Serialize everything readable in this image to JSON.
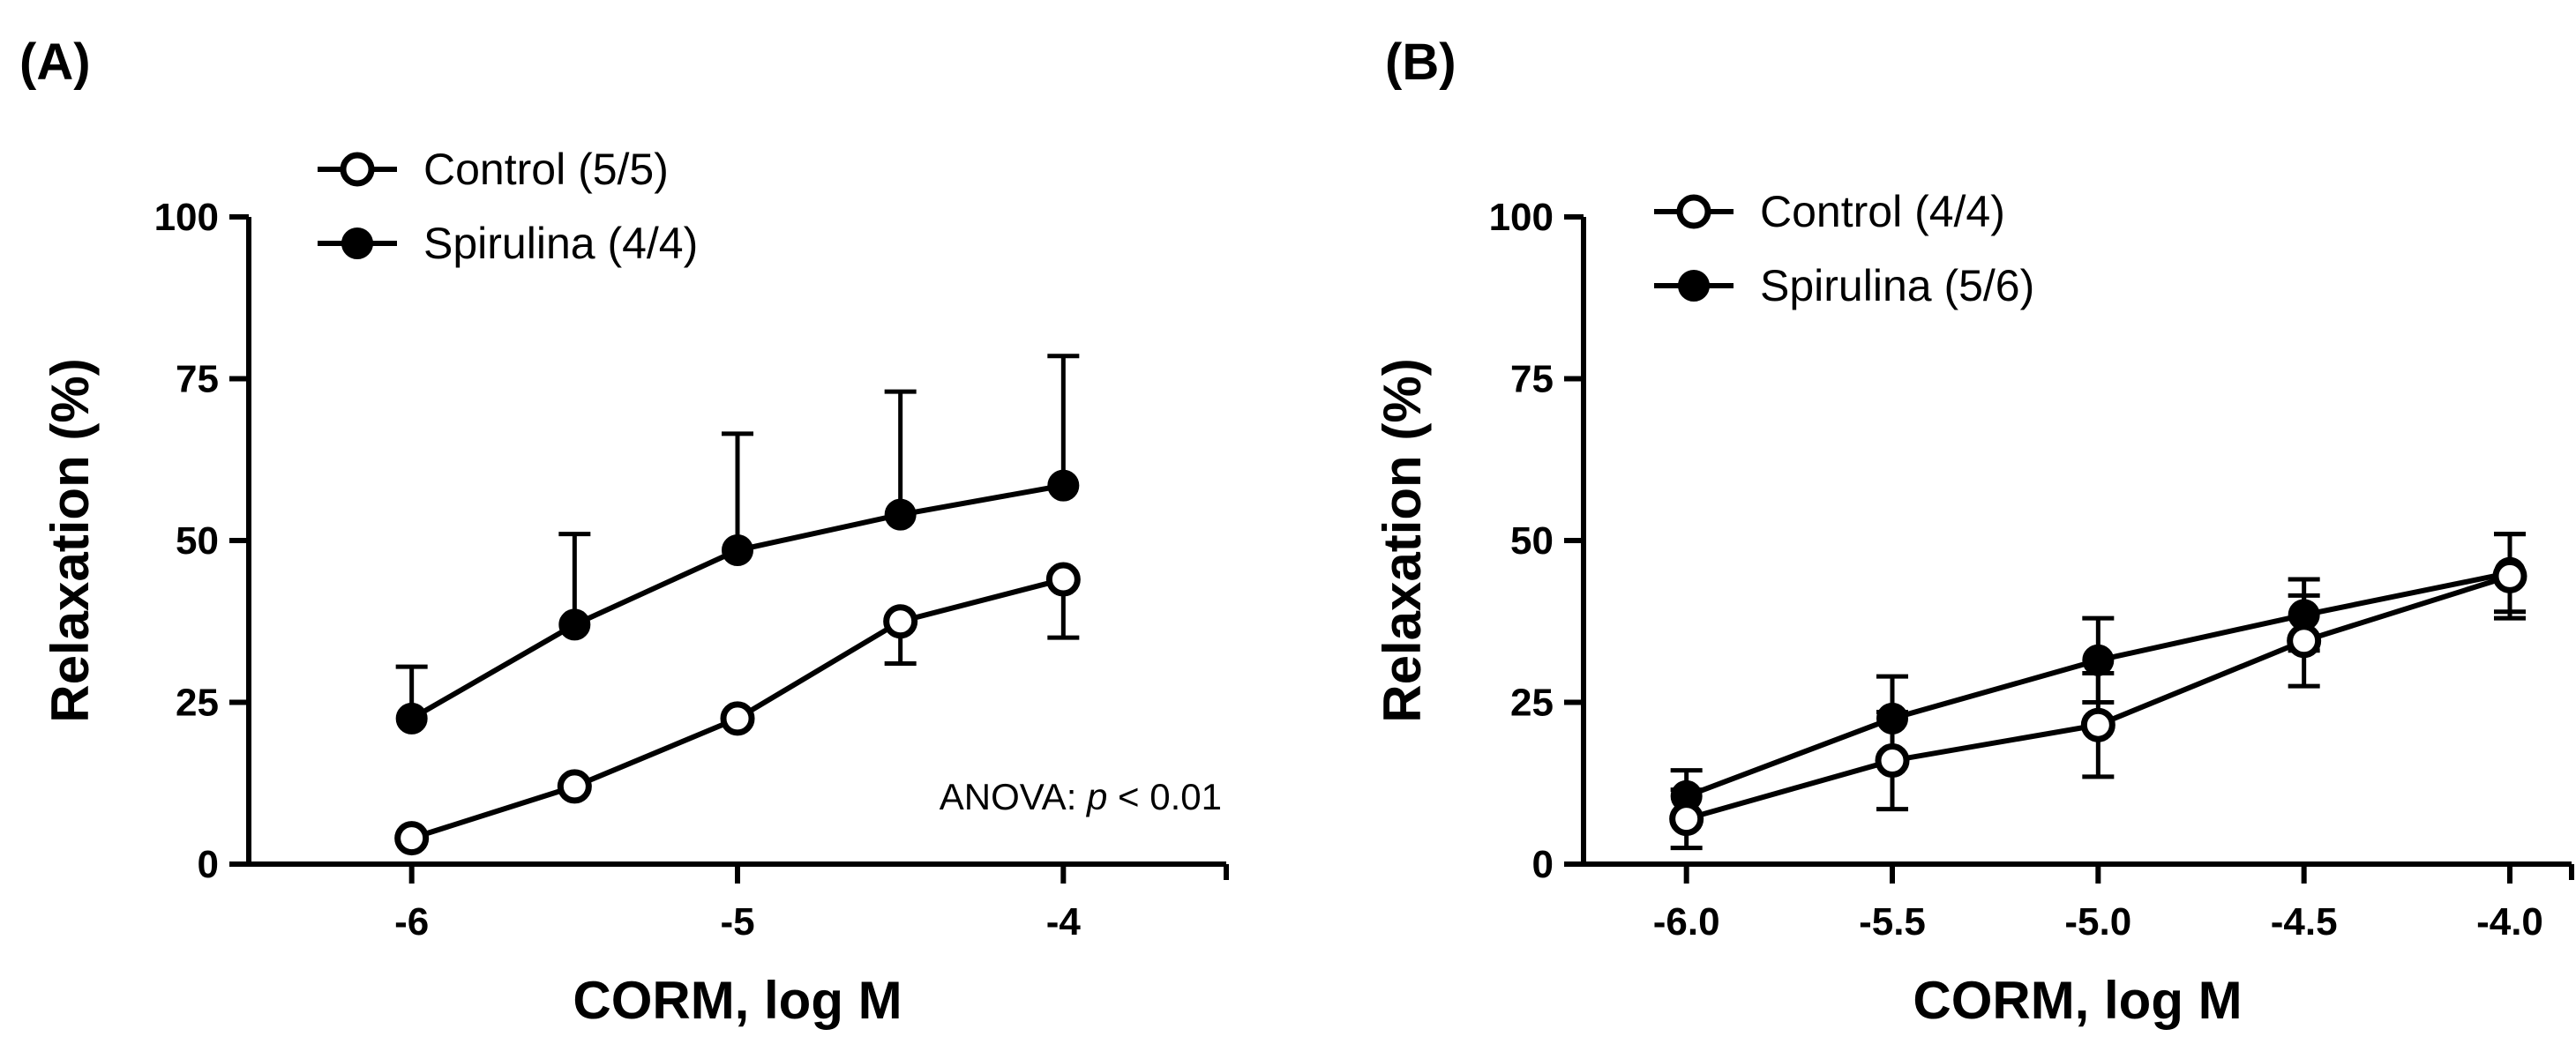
{
  "chart_data": [
    {
      "type": "line",
      "panel_label": "(A)",
      "xlabel": "CORM, log M",
      "ylabel": "Relaxation (%)",
      "x": [
        -6,
        -5.5,
        -5,
        -4.5,
        -4
      ],
      "xticks": [
        -6,
        -5,
        -4
      ],
      "xtick_labels": [
        "-6",
        "-5",
        "-4"
      ],
      "xlim": [
        -6.5,
        -3.5
      ],
      "yticks": [
        0,
        25,
        50,
        75,
        100
      ],
      "yticks_labels": [
        "0",
        "25",
        "50",
        "75",
        "100"
      ],
      "ylim": [
        0,
        100
      ],
      "legend_position": "top-left",
      "series": [
        {
          "name": "Control (5/5)",
          "marker": "open-circle",
          "values": [
            4,
            12,
            22.5,
            37.5,
            44
          ],
          "error_bars": [
            0,
            0,
            0,
            6.5,
            9
          ],
          "error_direction": "down"
        },
        {
          "name": "Spirulina (4/4)",
          "marker": "filled-circle",
          "values": [
            22.5,
            37,
            48.5,
            54,
            58.5
          ],
          "error_bars": [
            8,
            14,
            18,
            19,
            20
          ],
          "error_direction": "up"
        }
      ],
      "annotation": {
        "prefix": "ANOVA: ",
        "italic": "p",
        "suffix": " < 0.01"
      }
    },
    {
      "type": "line",
      "panel_label": "(B)",
      "xlabel": "CORM, log M",
      "ylabel": "Relaxation (%)",
      "x": [
        -6,
        -5.5,
        -5,
        -4.5,
        -4
      ],
      "xticks": [
        -6,
        -5.5,
        -5,
        -4.5,
        -4
      ],
      "xtick_labels": [
        "-6.0",
        "-5.5",
        "-5.0",
        "-4.5",
        "-4.0"
      ],
      "xlim": [
        -6.25,
        -3.85
      ],
      "yticks": [
        0,
        25,
        50,
        75,
        100
      ],
      "yticks_labels": [
        "0",
        "25",
        "50",
        "75",
        "100"
      ],
      "ylim": [
        0,
        100
      ],
      "legend_position": "top-left",
      "series": [
        {
          "name": "Control (4/4)",
          "marker": "open-circle",
          "values": [
            7,
            16,
            21.5,
            34.5,
            44.5
          ],
          "error_bars": [
            4.5,
            7.5,
            8,
            7,
            6.5
          ],
          "error_direction": "both"
        },
        {
          "name": "Spirulina (5/6)",
          "marker": "filled-circle",
          "values": [
            10.5,
            22.5,
            31.5,
            38.5,
            45
          ],
          "error_bars": [
            4,
            6.5,
            6.5,
            5.5,
            6
          ],
          "error_direction": "both"
        }
      ]
    }
  ]
}
